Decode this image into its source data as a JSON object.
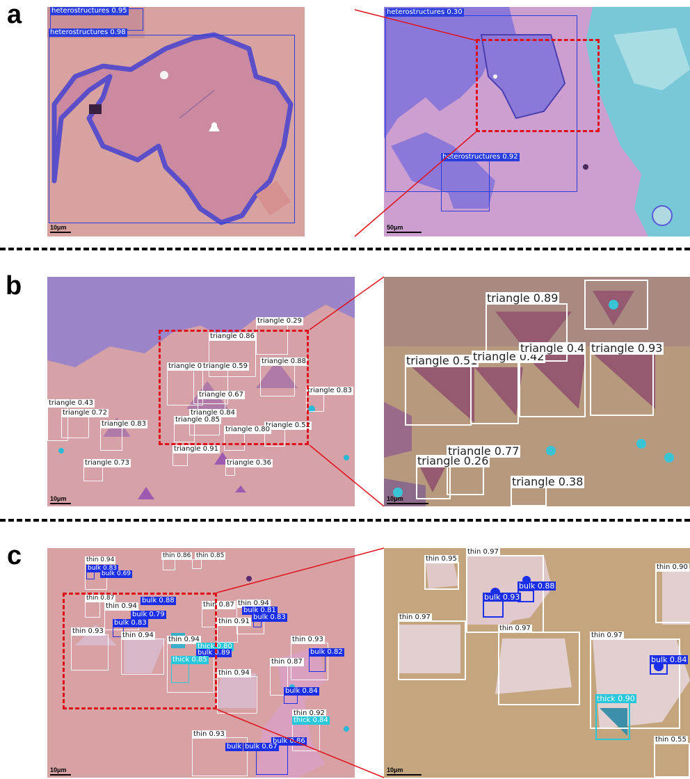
{
  "panels": {
    "a": {
      "letter": "a"
    },
    "b": {
      "letter": "b"
    },
    "c": {
      "letter": "c"
    }
  },
  "colors": {
    "heterostructure_box": "#2a3ee0",
    "triangle_box": "#ffffff",
    "thin_box": "#ffffff",
    "bulk_box": "#1b2ee8",
    "thick_box": "#29c7dc",
    "zoom_outline": "#e0101a"
  },
  "a": {
    "left": {
      "scale": "10μm",
      "detections": [
        {
          "label": "heterostructures 0.95"
        },
        {
          "label": "heterostructures 0.98"
        }
      ]
    },
    "right": {
      "scale": "50μm",
      "detections": [
        {
          "label": "heterostructures 0.30"
        },
        {
          "label": "heterostructures 0.92"
        }
      ]
    }
  },
  "b": {
    "left": {
      "scale": "10μm",
      "detections": [
        {
          "label": "triangle 0.29"
        },
        {
          "label": "triangle 0.86"
        },
        {
          "label": "triangle 0.80"
        },
        {
          "label": "triangle 0.59"
        },
        {
          "label": "triangle 0.88"
        },
        {
          "label": "triangle 0.67"
        },
        {
          "label": "triangle 0.83"
        },
        {
          "label": "triangle 0.43"
        },
        {
          "label": "triangle 0.72"
        },
        {
          "label": "triangle 0.83"
        },
        {
          "label": "triangle 0.84"
        },
        {
          "label": "triangle 0.85"
        },
        {
          "label": "triangle 0.52"
        },
        {
          "label": "triangle 0.80"
        },
        {
          "label": "triangle 0.91"
        },
        {
          "label": "triangle 0.73"
        },
        {
          "label": "triangle 0.36"
        }
      ]
    },
    "right": {
      "scale": "10μm",
      "detections": [
        {
          "label": "triangle 0.89"
        },
        {
          "label": "triangle 0.51"
        },
        {
          "label": "triangle 0.42"
        },
        {
          "label": "triangle 0.4"
        },
        {
          "label": "triangle 0.93"
        },
        {
          "label": "triangle 0.77"
        },
        {
          "label": "triangle 0.26"
        },
        {
          "label": "triangle 0.38"
        }
      ]
    }
  },
  "c": {
    "left": {
      "scale": "10μm",
      "detections": [
        {
          "label": "thin 0.94"
        },
        {
          "label": "bulk 0.83"
        },
        {
          "label": "bulk 0.69"
        },
        {
          "label": "thin 0.86"
        },
        {
          "label": "thin 0.85"
        },
        {
          "label": "thin 0.87"
        },
        {
          "label": "bulk 0.88"
        },
        {
          "label": "thin 0.94"
        },
        {
          "label": "bulk 0.79"
        },
        {
          "label": "bulk 0.83"
        },
        {
          "label": "thin 0.87"
        },
        {
          "label": "thin 0.94"
        },
        {
          "label": "bulk 0.81"
        },
        {
          "label": "bulk 0.83"
        },
        {
          "label": "thin 0.91"
        },
        {
          "label": "thin 0.93"
        },
        {
          "label": "thin 0.94"
        },
        {
          "label": "thin 0.94"
        },
        {
          "label": "thick 0.80"
        },
        {
          "label": "bulk 0.89"
        },
        {
          "label": "thick 0.85"
        },
        {
          "label": "thin 0.93"
        },
        {
          "label": "bulk 0.82"
        },
        {
          "label": "thin 0.87"
        },
        {
          "label": "thin 0.94"
        },
        {
          "label": "bulk 0.84"
        },
        {
          "label": "thin 0.92"
        },
        {
          "label": "thick 0.84"
        },
        {
          "label": "thin 0.93"
        },
        {
          "label": "bulk 0.86"
        },
        {
          "label": "bulk"
        },
        {
          "label": "bulk 0.67"
        }
      ]
    },
    "right": {
      "scale": "10μm",
      "detections": [
        {
          "label": "thin 0.95"
        },
        {
          "label": "thin 0.97"
        },
        {
          "label": "bulk 0.88"
        },
        {
          "label": "bulk 0.93"
        },
        {
          "label": "thin 0.97"
        },
        {
          "label": "thin 0.97"
        },
        {
          "label": "thin 0.97"
        },
        {
          "label": "bulk 0.84"
        },
        {
          "label": "thick 0.90"
        },
        {
          "label": "thin 0.90"
        },
        {
          "label": "thin 0.55"
        }
      ]
    }
  }
}
